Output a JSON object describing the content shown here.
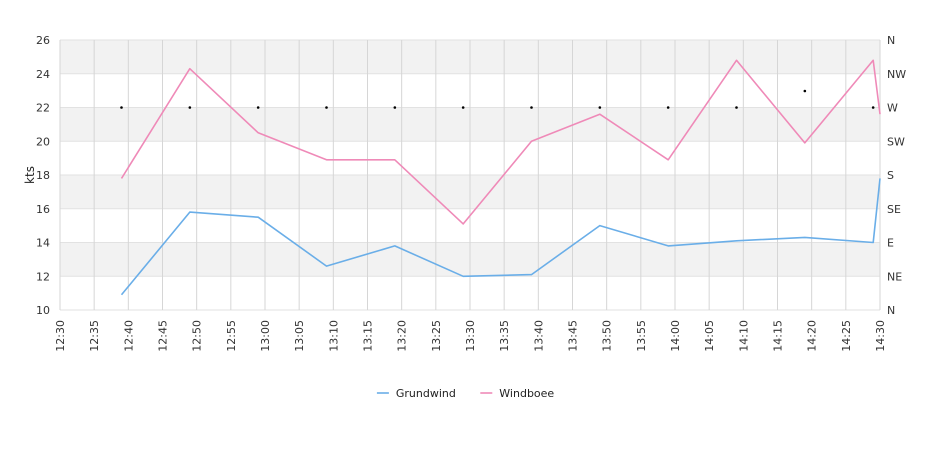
{
  "chart_data": {
    "type": "line",
    "title": "",
    "ylabel": "kts",
    "ylim": [
      10,
      26
    ],
    "y_ticks": [
      "10",
      "12",
      "14",
      "16",
      "18",
      "20",
      "22",
      "24",
      "26"
    ],
    "x_ticks": [
      "12:30",
      "12:35",
      "12:40",
      "12:45",
      "12:50",
      "12:55",
      "13:00",
      "13:05",
      "13:10",
      "13:15",
      "13:20",
      "13:25",
      "13:30",
      "13:35",
      "13:40",
      "13:45",
      "13:50",
      "13:55",
      "14:00",
      "14:05",
      "14:10",
      "14:15",
      "14:20",
      "14:25",
      "14:30"
    ],
    "xlim": [
      "12:30",
      "14:30"
    ],
    "grid": true,
    "legend_position": "bottom-center",
    "series": [
      {
        "name": "Grundwind",
        "color": "#6aaee8",
        "x": [
          "12:39",
          "12:49",
          "12:59",
          "13:09",
          "13:19",
          "13:29",
          "13:39",
          "13:49",
          "13:59",
          "14:09",
          "14:19",
          "14:29",
          "14:30"
        ],
        "values": [
          10.9,
          15.8,
          15.5,
          12.6,
          13.8,
          12.0,
          12.1,
          15.0,
          13.8,
          14.1,
          14.3,
          14.0,
          17.8
        ]
      },
      {
        "name": "Windboee",
        "color": "#ef8ab8",
        "x": [
          "12:39",
          "12:49",
          "12:59",
          "13:09",
          "13:19",
          "13:29",
          "13:39",
          "13:49",
          "13:59",
          "14:09",
          "14:19",
          "14:29",
          "14:30"
        ],
        "values": [
          17.8,
          24.3,
          20.5,
          18.9,
          18.9,
          15.1,
          20.0,
          21.6,
          18.9,
          24.8,
          19.9,
          24.8,
          21.6
        ]
      }
    ],
    "direction_axis": {
      "labels": [
        "N",
        "NE",
        "E",
        "SE",
        "S",
        "SW",
        "W",
        "NW",
        "N"
      ],
      "range_degrees": [
        0,
        360
      ]
    },
    "direction_points": {
      "color": "#000000",
      "x": [
        "12:39",
        "12:49",
        "12:59",
        "13:09",
        "13:19",
        "13:29",
        "13:39",
        "13:49",
        "13:59",
        "14:09",
        "14:19",
        "14:29"
      ],
      "degrees": [
        270,
        270,
        270,
        270,
        270,
        270,
        270,
        270,
        270,
        270,
        292,
        270
      ]
    }
  }
}
